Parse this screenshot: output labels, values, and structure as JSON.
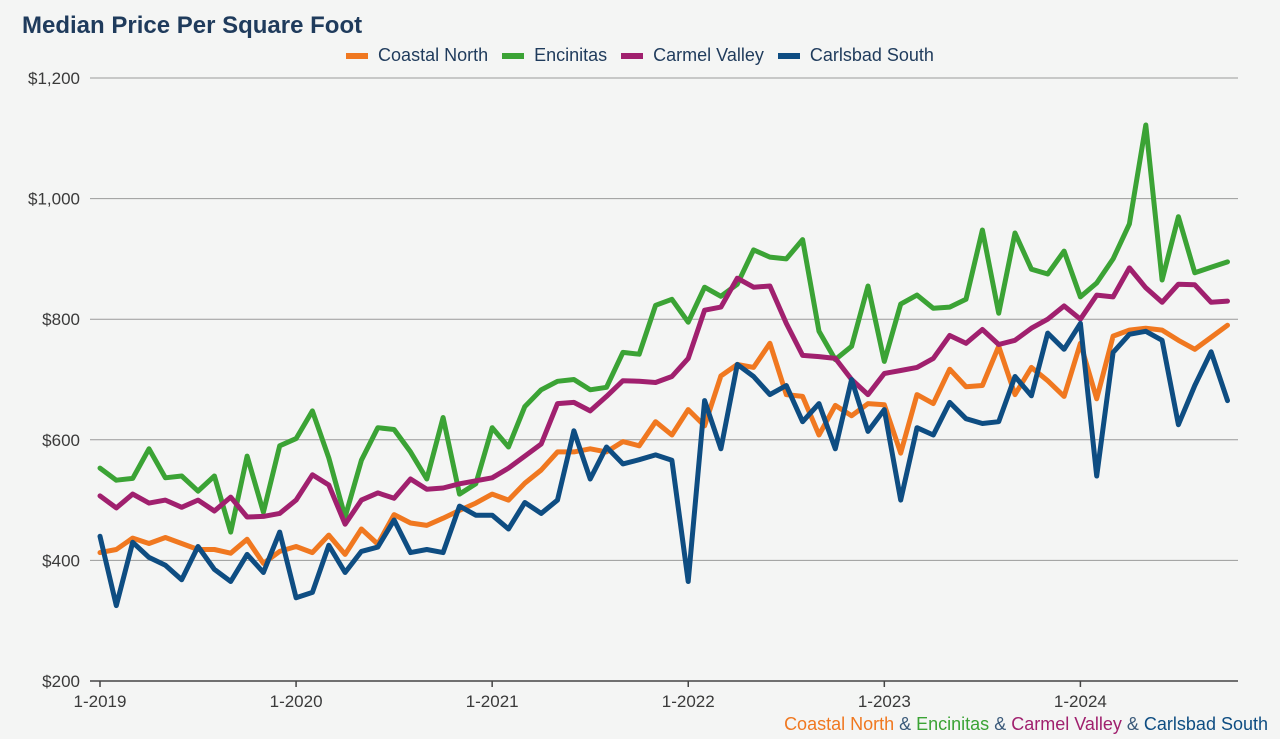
{
  "chart_data": {
    "type": "line",
    "title": "Median Price Per Square Foot",
    "y_ticks": [
      "$200",
      "$400",
      "$600",
      "$800",
      "$1,000",
      "$1,200"
    ],
    "ylim": [
      200,
      1200
    ],
    "y_tick_values": [
      200,
      400,
      600,
      800,
      1000,
      1200
    ],
    "x_ticks": [
      "1-2019",
      "1-2020",
      "1-2021",
      "1-2022",
      "1-2023",
      "1-2024"
    ],
    "x_tick_dates": [
      "2019-01",
      "2020-01",
      "2021-01",
      "2022-01",
      "2023-01",
      "2024-01"
    ],
    "x_start": "2019-01",
    "x_end": "2024-10",
    "grid": true,
    "legend_position": "top-center",
    "series": [
      {
        "name": "Coastal North",
        "color": "#f07820",
        "values": [
          413,
          418,
          437,
          428,
          438,
          428,
          418,
          418,
          412,
          435,
          395,
          415,
          423,
          413,
          442,
          410,
          452,
          427,
          476,
          462,
          458,
          470,
          483,
          495,
          510,
          500,
          528,
          550,
          580,
          580,
          585,
          580,
          597,
          590,
          630,
          608,
          650,
          623,
          706,
          725,
          720,
          760,
          675,
          672,
          608,
          657,
          640,
          660,
          658,
          578,
          675,
          660,
          717,
          688,
          690,
          755,
          675,
          720,
          698,
          672,
          760,
          668,
          772,
          782,
          785,
          782,
          765,
          750,
          770,
          790
        ]
      },
      {
        "name": "Encinitas",
        "color": "#3ba335",
        "values": [
          553,
          533,
          536,
          585,
          537,
          540,
          515,
          540,
          447,
          573,
          480,
          590,
          602,
          648,
          570,
          472,
          566,
          620,
          617,
          580,
          535,
          637,
          510,
          527,
          620,
          588,
          655,
          683,
          697,
          700,
          683,
          687,
          745,
          742,
          823,
          833,
          795,
          853,
          838,
          858,
          915,
          903,
          900,
          932,
          780,
          733,
          755,
          855,
          730,
          825,
          840,
          818,
          820,
          833,
          948,
          810,
          943,
          883,
          875,
          913,
          837,
          860,
          900,
          958,
          1122,
          865,
          970,
          877,
          886,
          895
        ]
      },
      {
        "name": "Carmel Valley",
        "color": "#a0206e",
        "values": [
          507,
          487,
          510,
          495,
          500,
          488,
          500,
          482,
          505,
          472,
          473,
          478,
          500,
          542,
          525,
          460,
          500,
          512,
          503,
          535,
          518,
          520,
          527,
          532,
          537,
          553,
          573,
          593,
          660,
          662,
          648,
          672,
          698,
          697,
          695,
          705,
          735,
          815,
          820,
          868,
          853,
          855,
          793,
          740,
          738,
          735,
          700,
          675,
          710,
          715,
          720,
          735,
          773,
          760,
          783,
          758,
          765,
          785,
          800,
          822,
          800,
          840,
          837,
          885,
          852,
          828,
          858,
          857,
          828,
          830
        ]
      },
      {
        "name": "Carlsbad South",
        "color": "#0e4d82",
        "values": [
          440,
          325,
          430,
          405,
          392,
          368,
          423,
          385,
          365,
          410,
          380,
          447,
          338,
          347,
          425,
          380,
          415,
          422,
          467,
          413,
          418,
          413,
          490,
          475,
          475,
          452,
          496,
          478,
          500,
          615,
          535,
          588,
          560,
          567,
          575,
          566,
          365,
          665,
          585,
          725,
          705,
          675,
          690,
          630,
          660,
          585,
          700,
          614,
          650,
          500,
          620,
          608,
          662,
          635,
          627,
          630,
          705,
          673,
          777,
          750,
          793,
          540,
          745,
          775,
          780,
          765,
          625,
          690,
          746,
          665
        ]
      }
    ]
  },
  "footer": {
    "parts": [
      {
        "text": "Coastal North",
        "color": "#f07820"
      },
      {
        "text": " & ",
        "color": "#3b5a7a"
      },
      {
        "text": "Encinitas",
        "color": "#3ba335"
      },
      {
        "text": " & ",
        "color": "#3b5a7a"
      },
      {
        "text": "Carmel Valley",
        "color": "#a0206e"
      },
      {
        "text": " & ",
        "color": "#3b5a7a"
      },
      {
        "text": "Carlsbad South",
        "color": "#0e4d82"
      }
    ]
  }
}
